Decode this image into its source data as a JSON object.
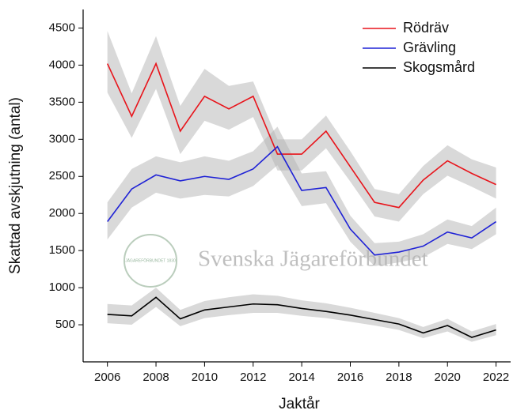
{
  "chart_data": {
    "type": "line",
    "xlabel": "Jaktår",
    "ylabel": "Skattad avskjutning (antal)",
    "watermark": "Svenska Jägareförbundet",
    "watermark_badge": "JÄGAREFÖRBUNDET 1830",
    "x": [
      2006,
      2007,
      2008,
      2009,
      2010,
      2011,
      2012,
      2013,
      2014,
      2015,
      2016,
      2017,
      2018,
      2019,
      2020,
      2021,
      2022
    ],
    "series": [
      {
        "name": "Rödräv",
        "color": "#e8141b",
        "values": [
          4020,
          3310,
          4020,
          3110,
          3580,
          3410,
          3580,
          2800,
          2800,
          3110,
          2630,
          2150,
          2080,
          2450,
          2710,
          2540,
          2390
        ],
        "lower": [
          3630,
          3020,
          3680,
          2800,
          3250,
          3130,
          3300,
          2580,
          2580,
          2880,
          2430,
          1960,
          1890,
          2260,
          2510,
          2360,
          2200
        ],
        "upper": [
          4460,
          3620,
          4390,
          3450,
          3950,
          3720,
          3780,
          3000,
          3000,
          3320,
          2840,
          2330,
          2260,
          2640,
          2920,
          2730,
          2620
        ]
      },
      {
        "name": "Grävling",
        "color": "#1f22d6",
        "values": [
          1890,
          2330,
          2520,
          2440,
          2500,
          2460,
          2600,
          2900,
          2310,
          2350,
          1790,
          1440,
          1480,
          1560,
          1750,
          1670,
          1890
        ],
        "lower": [
          1650,
          2080,
          2280,
          2200,
          2250,
          2230,
          2370,
          2650,
          2100,
          2140,
          1620,
          1290,
          1340,
          1410,
          1590,
          1520,
          1720
        ],
        "upper": [
          2150,
          2600,
          2770,
          2690,
          2770,
          2710,
          2840,
          3170,
          2540,
          2570,
          1970,
          1600,
          1620,
          1720,
          1920,
          1830,
          2080
        ]
      },
      {
        "name": "Skogsmård",
        "color": "#000000",
        "values": [
          640,
          620,
          870,
          580,
          700,
          740,
          780,
          770,
          720,
          680,
          630,
          570,
          510,
          390,
          490,
          330,
          430
        ],
        "lower": [
          520,
          500,
          740,
          480,
          590,
          630,
          660,
          660,
          620,
          590,
          540,
          490,
          430,
          320,
          410,
          270,
          360
        ],
        "upper": [
          780,
          760,
          1000,
          700,
          820,
          870,
          910,
          890,
          830,
          790,
          730,
          660,
          590,
          470,
          580,
          410,
          510
        ]
      }
    ],
    "xlim": [
      2005,
      2022.6
    ],
    "ylim": [
      0,
      4750
    ],
    "xticks": [
      2006,
      2008,
      2010,
      2012,
      2014,
      2016,
      2018,
      2020,
      2022
    ],
    "yticks": [
      500,
      1000,
      1500,
      2000,
      2500,
      3000,
      3500,
      4000,
      4500
    ],
    "band_color": "#b4b4b4",
    "legend": "upper right"
  }
}
